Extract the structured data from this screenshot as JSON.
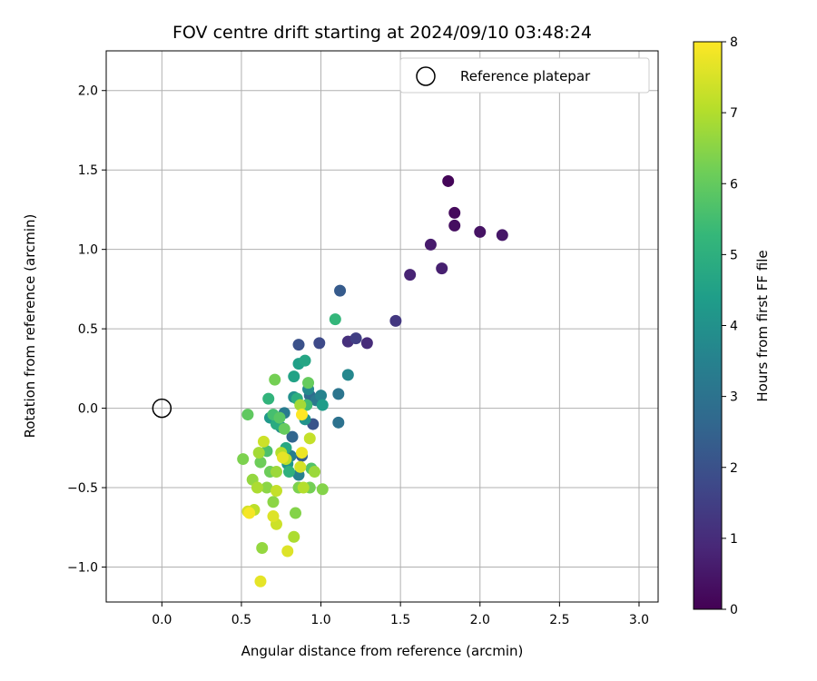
{
  "chart_data": {
    "type": "scatter",
    "title": "FOV centre drift starting at 2024/09/10 03:48:24",
    "xlabel": "Angular distance from reference (arcmin)",
    "ylabel": "Rotation from reference (arcmin)",
    "xlim": [
      -0.35,
      3.12
    ],
    "ylim": [
      -1.22,
      2.25
    ],
    "xticks": [
      0.0,
      0.5,
      1.0,
      1.5,
      2.0,
      2.5,
      3.0
    ],
    "xtick_labels": [
      "0.0",
      "0.5",
      "1.0",
      "1.5",
      "2.0",
      "2.5",
      "3.0"
    ],
    "yticks": [
      -1.0,
      -0.5,
      0.0,
      0.5,
      1.0,
      1.5,
      2.0
    ],
    "ytick_labels": [
      "−1.0",
      "−0.5",
      "0.0",
      "0.5",
      "1.0",
      "1.5",
      "2.0"
    ],
    "grid": true,
    "legend": {
      "label": "Reference platepar",
      "placement": "top-right"
    },
    "reference_point": {
      "x": 0.0,
      "y": 0.0
    },
    "colorbar": {
      "label": "Hours from first FF file",
      "colormap": "viridis",
      "range": [
        0,
        8
      ],
      "ticks": [
        0,
        1,
        2,
        3,
        4,
        5,
        6,
        7,
        8
      ],
      "tick_labels": [
        "0",
        "1",
        "2",
        "3",
        "4",
        "5",
        "6",
        "7",
        "8"
      ]
    },
    "colors": [
      "#440154",
      "#482878",
      "#3e4989",
      "#31688e",
      "#26828e",
      "#1f9e89",
      "#35b779",
      "#6ece58",
      "#b5de2b",
      "#fde725"
    ],
    "points": [
      {
        "x": 1.8,
        "y": 1.43,
        "h": 0.1
      },
      {
        "x": 1.84,
        "y": 1.23,
        "h": 0.2
      },
      {
        "x": 1.84,
        "y": 1.15,
        "h": 0.3
      },
      {
        "x": 2.0,
        "y": 1.11,
        "h": 0.4
      },
      {
        "x": 2.14,
        "y": 1.09,
        "h": 0.5
      },
      {
        "x": 1.69,
        "y": 1.03,
        "h": 0.6
      },
      {
        "x": 1.76,
        "y": 0.88,
        "h": 0.7
      },
      {
        "x": 1.56,
        "y": 0.84,
        "h": 0.8
      },
      {
        "x": 1.29,
        "y": 0.41,
        "h": 1.0
      },
      {
        "x": 1.17,
        "y": 0.42,
        "h": 1.1
      },
      {
        "x": 1.47,
        "y": 0.55,
        "h": 1.3
      },
      {
        "x": 1.22,
        "y": 0.44,
        "h": 1.5
      },
      {
        "x": 0.99,
        "y": 0.41,
        "h": 1.8
      },
      {
        "x": 0.86,
        "y": 0.4,
        "h": 2.0
      },
      {
        "x": 1.12,
        "y": 0.74,
        "h": 2.3
      },
      {
        "x": 0.95,
        "y": -0.1,
        "h": 2.1
      },
      {
        "x": 0.88,
        "y": -0.3,
        "h": 2.4
      },
      {
        "x": 0.82,
        "y": -0.18,
        "h": 2.6
      },
      {
        "x": 0.93,
        "y": 0.08,
        "h": 2.8
      },
      {
        "x": 1.11,
        "y": -0.09,
        "h": 3.0
      },
      {
        "x": 1.11,
        "y": 0.09,
        "h": 3.1
      },
      {
        "x": 0.97,
        "y": 0.05,
        "h": 3.2
      },
      {
        "x": 0.77,
        "y": -0.03,
        "h": 3.3
      },
      {
        "x": 0.81,
        "y": -0.3,
        "h": 3.4
      },
      {
        "x": 0.86,
        "y": -0.42,
        "h": 3.5
      },
      {
        "x": 1.0,
        "y": 0.08,
        "h": 3.6
      },
      {
        "x": 1.17,
        "y": 0.21,
        "h": 3.7
      },
      {
        "x": 0.92,
        "y": 0.12,
        "h": 3.8
      },
      {
        "x": 0.75,
        "y": -0.12,
        "h": 3.9
      },
      {
        "x": 0.83,
        "y": 0.07,
        "h": 4.0
      },
      {
        "x": 0.9,
        "y": -0.07,
        "h": 4.1
      },
      {
        "x": 0.79,
        "y": -0.35,
        "h": 4.2
      },
      {
        "x": 0.68,
        "y": -0.06,
        "h": 4.3
      },
      {
        "x": 1.01,
        "y": 0.02,
        "h": 4.4
      },
      {
        "x": 0.86,
        "y": 0.28,
        "h": 4.5
      },
      {
        "x": 0.83,
        "y": 0.2,
        "h": 4.6
      },
      {
        "x": 0.9,
        "y": 0.3,
        "h": 4.7
      },
      {
        "x": 0.78,
        "y": -0.25,
        "h": 4.8
      },
      {
        "x": 0.72,
        "y": -0.1,
        "h": 4.9
      },
      {
        "x": 0.85,
        "y": 0.06,
        "h": 5.0
      },
      {
        "x": 0.8,
        "y": -0.4,
        "h": 5.1
      },
      {
        "x": 0.67,
        "y": 0.06,
        "h": 5.2
      },
      {
        "x": 1.09,
        "y": 0.56,
        "h": 5.3
      },
      {
        "x": 0.91,
        "y": 0.02,
        "h": 5.5
      },
      {
        "x": 0.7,
        "y": -0.04,
        "h": 5.6
      },
      {
        "x": 0.66,
        "y": -0.27,
        "h": 5.7
      },
      {
        "x": 0.94,
        "y": -0.38,
        "h": 5.8
      },
      {
        "x": 0.74,
        "y": -0.06,
        "h": 5.9
      },
      {
        "x": 0.54,
        "y": -0.04,
        "h": 6.0
      },
      {
        "x": 0.77,
        "y": -0.13,
        "h": 6.1
      },
      {
        "x": 0.92,
        "y": 0.16,
        "h": 6.1
      },
      {
        "x": 0.62,
        "y": -0.34,
        "h": 6.2
      },
      {
        "x": 0.68,
        "y": -0.4,
        "h": 6.2
      },
      {
        "x": 0.71,
        "y": 0.18,
        "h": 6.3
      },
      {
        "x": 0.93,
        "y": -0.5,
        "h": 6.3
      },
      {
        "x": 0.51,
        "y": -0.32,
        "h": 6.4
      },
      {
        "x": 0.86,
        "y": -0.5,
        "h": 6.4
      },
      {
        "x": 1.01,
        "y": -0.51,
        "h": 6.5
      },
      {
        "x": 0.84,
        "y": -0.66,
        "h": 6.5
      },
      {
        "x": 0.66,
        "y": -0.5,
        "h": 6.6
      },
      {
        "x": 0.7,
        "y": -0.59,
        "h": 6.6
      },
      {
        "x": 0.63,
        "y": -0.88,
        "h": 6.7
      },
      {
        "x": 0.57,
        "y": -0.45,
        "h": 6.7
      },
      {
        "x": 0.96,
        "y": -0.4,
        "h": 6.8
      },
      {
        "x": 0.72,
        "y": -0.4,
        "h": 6.8
      },
      {
        "x": 0.87,
        "y": 0.02,
        "h": 6.9
      },
      {
        "x": 0.61,
        "y": -0.28,
        "h": 6.9
      },
      {
        "x": 0.83,
        "y": -0.81,
        "h": 7.0
      },
      {
        "x": 0.6,
        "y": -0.5,
        "h": 7.0
      },
      {
        "x": 0.75,
        "y": -0.28,
        "h": 7.1
      },
      {
        "x": 0.89,
        "y": -0.5,
        "h": 7.1
      },
      {
        "x": 0.58,
        "y": -0.64,
        "h": 7.2
      },
      {
        "x": 0.78,
        "y": -0.32,
        "h": 7.2
      },
      {
        "x": 0.72,
        "y": -0.52,
        "h": 7.3
      },
      {
        "x": 0.93,
        "y": -0.19,
        "h": 7.3
      },
      {
        "x": 0.72,
        "y": -0.73,
        "h": 7.4
      },
      {
        "x": 0.64,
        "y": -0.21,
        "h": 7.4
      },
      {
        "x": 0.87,
        "y": -0.37,
        "h": 7.5
      },
      {
        "x": 0.54,
        "y": -0.65,
        "h": 7.5
      },
      {
        "x": 0.7,
        "y": -0.68,
        "h": 7.6
      },
      {
        "x": 0.79,
        "y": -0.9,
        "h": 7.6
      },
      {
        "x": 0.62,
        "y": -1.09,
        "h": 7.7
      },
      {
        "x": 0.76,
        "y": -0.31,
        "h": 7.7
      },
      {
        "x": 0.88,
        "y": -0.28,
        "h": 7.8
      },
      {
        "x": 0.55,
        "y": -0.66,
        "h": 7.9
      },
      {
        "x": 0.88,
        "y": -0.04,
        "h": 8.0
      }
    ]
  }
}
